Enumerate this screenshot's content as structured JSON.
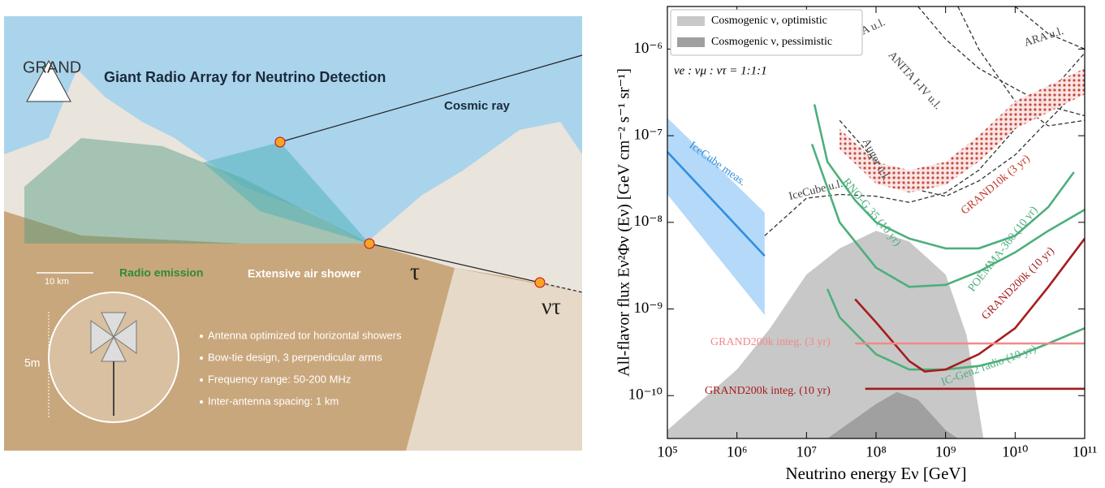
{
  "illustration": {
    "logo": "GRAND",
    "title": "Giant Radio Array for Neutrino Detection",
    "labels": {
      "cosmic_ray": "Cosmic ray",
      "radio_emission": "Radio emission",
      "air_shower": "Extensive air shower",
      "tau": "τ",
      "nu_tau": "ντ",
      "scale": "10 km",
      "antenna_height": "5m"
    },
    "bullets": [
      "Antenna optimized tor horizontal showers",
      "Bow-tie design, 3 perpendicular arms",
      "Frequency range: 50-200 MHz",
      "Inter-antenna spacing: 1 km"
    ]
  },
  "chart_data": {
    "type": "line",
    "x_label": "Neutrino energy Eν [GeV]",
    "y_label": "All-flavor flux Eν²Φν (Eν) [GeV cm⁻² s⁻¹ sr⁻¹]",
    "annotation": "νe : νμ : ντ = 1:1:1",
    "xscale": "log",
    "yscale": "log",
    "legend": "upper left",
    "xlim": [
      100000,
      100000000000
    ],
    "ylim": [
      3.2e-11,
      3.1e-06
    ],
    "xticks": [
      {
        "value": 100000,
        "label": "10⁵"
      },
      {
        "value": 1000000,
        "label": "10⁶"
      },
      {
        "value": 10000000,
        "label": "10⁷"
      },
      {
        "value": 100000000,
        "label": "10⁸"
      },
      {
        "value": 1000000000,
        "label": "10⁹"
      },
      {
        "value": 10000000000,
        "label": "10¹⁰"
      },
      {
        "value": 100000000000,
        "label": "10¹¹"
      }
    ],
    "yticks": [
      {
        "value": 1e-10,
        "label": "10⁻¹⁰"
      },
      {
        "value": 1e-09,
        "label": "10⁻⁹"
      },
      {
        "value": 1e-08,
        "label": "10⁻⁸"
      },
      {
        "value": 1e-07,
        "label": "10⁻⁷"
      },
      {
        "value": 1e-06,
        "label": "10⁻⁶"
      }
    ],
    "series": [
      {
        "name": "Cosmogenic ν, optimistic",
        "style": "area",
        "color": "#c8c8c8",
        "x": [
          100000,
          1000000,
          3000000,
          10000000,
          30000000,
          100000000,
          300000000,
          1000000000,
          2000000000,
          3500000000
        ],
        "values": [
          4e-11,
          2e-10,
          6e-10,
          2.5e-09,
          5e-09,
          8e-09,
          6e-09,
          2.5e-09,
          5e-10,
          3.2e-11
        ]
      },
      {
        "name": "Cosmogenic ν, pessimistic",
        "style": "area",
        "color": "#a0a0a0",
        "x": [
          20000000,
          100000000,
          200000000,
          400000000,
          1000000000,
          1500000000
        ],
        "values": [
          3.2e-11,
          8e-11,
          1.1e-10,
          9e-11,
          4e-11,
          3.2e-11
        ]
      },
      {
        "name": "IceCube meas.",
        "style": "solid",
        "color": "#2f8fe0",
        "x": [
          100000,
          2500000
        ],
        "values": [
          6.5e-08,
          4.1e-09
        ],
        "band": {
          "color": "#a8d2f8",
          "upper": [
            1.6e-07,
            1.3e-08
          ],
          "lower": [
            2.1e-08,
            8.5e-10
          ]
        }
      },
      {
        "name": "IceCube u.l.",
        "style": "dashed",
        "color": "#333333",
        "x": [
          2500000,
          10000000,
          30000000,
          100000000,
          300000000,
          1000000000,
          3000000000,
          10000000000,
          30000000000,
          100000000000
        ],
        "values": [
          7e-09,
          1.9e-08,
          2.1e-08,
          2e-08,
          1.7e-08,
          2.2e-08,
          4e-08,
          1.2e-07,
          3e-07,
          9e-07
        ]
      },
      {
        "name": "ARIANNA u.l.",
        "style": "dashed",
        "color": "#333333",
        "x": [
          400000000,
          1000000000,
          3000000000,
          10000000000,
          30000000000,
          100000000000
        ],
        "values": [
          3.1e-06,
          1.3e-06,
          6e-07,
          3.5e-07,
          2.2e-07,
          1.7e-07
        ]
      },
      {
        "name": "ARA u.l.",
        "style": "dashed",
        "color": "#333333",
        "x": [
          10000000000,
          30000000000,
          100000000000
        ],
        "values": [
          3.1e-06,
          1.5e-06,
          1e-06
        ]
      },
      {
        "name": "ANITA I-IV u.l.",
        "style": "dashed",
        "color": "#333333",
        "x": [
          1500000000,
          3000000000,
          10000000000,
          30000000000,
          100000000000
        ],
        "values": [
          3.1e-06,
          1e-06,
          2.5e-07,
          1.3e-07,
          1.5e-07
        ]
      },
      {
        "name": "Auger u.l.",
        "style": "dashed",
        "color": "#333333",
        "x": [
          30000000,
          100000000,
          300000000,
          1000000000,
          3000000000,
          10000000000,
          30000000000,
          100000000000
        ],
        "values": [
          1.5e-07,
          5e-08,
          2.5e-08,
          2e-08,
          3e-08,
          6e-08,
          1.5e-07,
          4e-07
        ]
      },
      {
        "name": "GRAND10k (3 yr)",
        "style": "dotted-band",
        "color": "#c0392b",
        "x": [
          30000000,
          100000000,
          300000000,
          1000000000,
          3000000000,
          10000000000,
          100000000000
        ],
        "values": [
          1.2e-07,
          5e-08,
          4e-08,
          5e-08,
          1e-07,
          2.5e-07,
          6e-07
        ],
        "lower": [
          7e-08,
          2.8e-08,
          2.2e-08,
          2.7e-08,
          5e-08,
          1.2e-07,
          3e-07
        ]
      },
      {
        "name": "RNO-G 35 (10 yr)",
        "style": "solid",
        "color": "#4daf7c",
        "x": [
          13000000,
          20000000,
          50000000,
          100000000,
          300000000,
          1000000000,
          3000000000,
          10000000000,
          30000000000,
          70000000000
        ],
        "values": [
          2.3e-07,
          5e-08,
          1.8e-08,
          1e-08,
          6.5e-09,
          5e-09,
          5e-09,
          7e-09,
          1.5e-08,
          3.8e-08
        ]
      },
      {
        "name": "POEMMA-360 (10 yr)",
        "style": "solid",
        "color": "#4daf7c",
        "x": [
          12000000,
          30000000,
          100000000,
          300000000,
          1000000000,
          3000000000,
          10000000000,
          30000000000,
          100000000000
        ],
        "values": [
          8e-08,
          1e-08,
          3e-09,
          1.8e-09,
          1.9e-09,
          2.7e-09,
          4.5e-09,
          8e-09,
          1.4e-08
        ]
      },
      {
        "name": "IC-Gen2 radio (10 yr)",
        "style": "solid",
        "color": "#4daf7c",
        "x": [
          20000000,
          30000000,
          100000000,
          300000000,
          1000000000,
          3000000000,
          10000000000,
          30000000000,
          100000000000
        ],
        "values": [
          1.7e-09,
          8e-10,
          3e-10,
          2e-10,
          2e-10,
          2.2e-10,
          2.8e-10,
          4e-10,
          6e-10
        ]
      },
      {
        "name": "GRAND200k (10 yr)",
        "style": "solid",
        "color": "#a51d1d",
        "x": [
          50000000,
          100000000,
          300000000,
          500000000,
          1000000000,
          3000000000,
          10000000000,
          30000000000,
          100000000000
        ],
        "values": [
          1.3e-09,
          7e-10,
          2.5e-10,
          1.9e-10,
          2e-10,
          3e-10,
          6e-10,
          1.8e-09,
          6.5e-09
        ]
      },
      {
        "name": "GRAND200k integ. (3 yr)",
        "style": "solid",
        "color": "#f08a8a",
        "x": [
          50000000,
          100000000000
        ],
        "values": [
          4e-10,
          4e-10
        ]
      },
      {
        "name": "GRAND200k integ. (10 yr)",
        "style": "solid",
        "color": "#a51d1d",
        "x": [
          70000000,
          100000000000
        ],
        "values": [
          1.2e-10,
          1.2e-10
        ]
      }
    ]
  }
}
